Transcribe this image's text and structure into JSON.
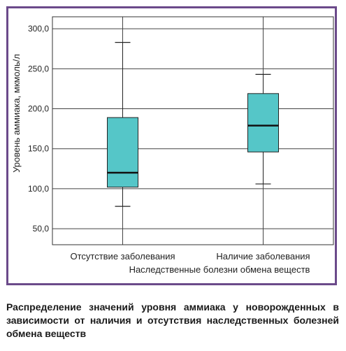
{
  "chart_data": {
    "type": "boxplot",
    "xlabel": "Наследственные болезни обмена веществ",
    "ylabel": "Уровень аммиака, мкмоль/л",
    "ylim": [
      30,
      315
    ],
    "y_ticks": [
      50,
      100,
      150,
      200,
      250,
      300
    ],
    "y_tick_labels": [
      "50,0",
      "100,0",
      "150,0",
      "200,0",
      "250,0",
      "300,0"
    ],
    "grid": true,
    "box_color": "#55c6c8",
    "categories": [
      "Отсутствие заболевания",
      "Наличие заболевания"
    ],
    "boxes": [
      {
        "category": "Отсутствие заболевания",
        "min": 78,
        "q1": 102,
        "median": 120,
        "q3": 189,
        "max": 283
      },
      {
        "category": "Наличие заболевания",
        "min": 106,
        "q1": 146,
        "median": 179,
        "q3": 219,
        "max": 243
      }
    ]
  },
  "caption": "Распределение значений уровня аммиака у новорожденных в зависимости от наличия и отсутствия наследственных болезней обмена веществ"
}
